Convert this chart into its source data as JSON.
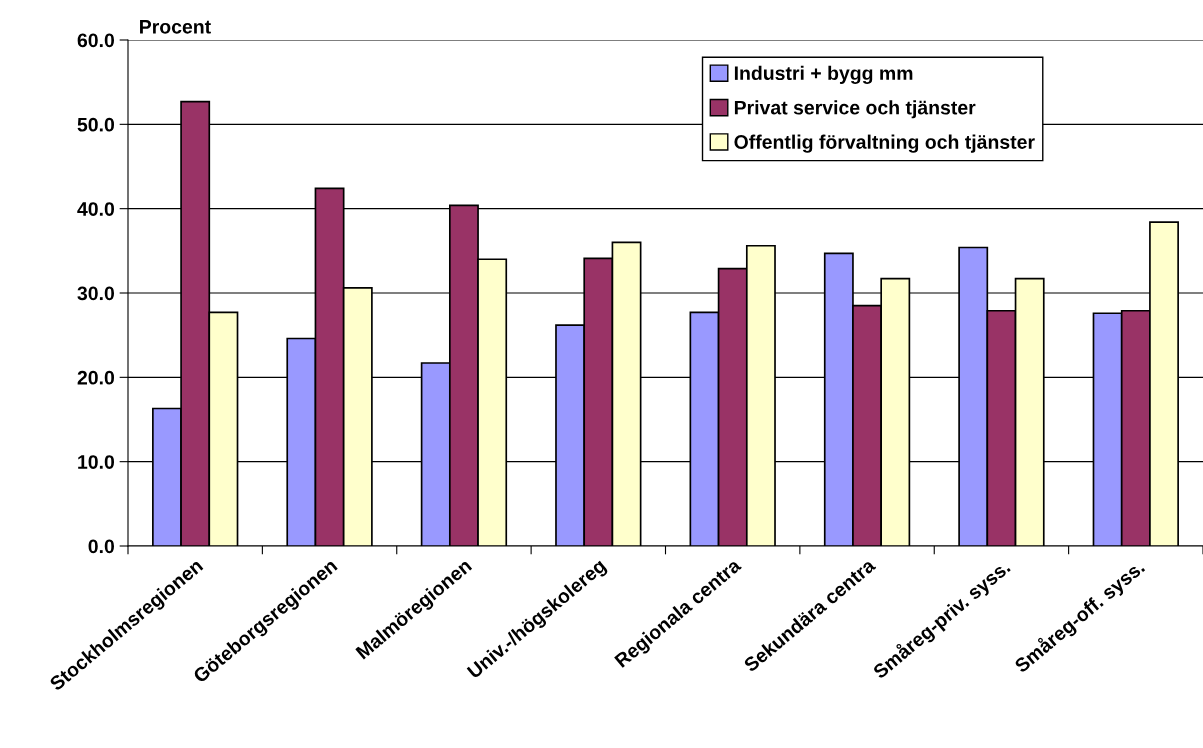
{
  "chart_data": {
    "type": "bar",
    "ylabel": "Procent",
    "categories": [
      "Stockholmsregionen",
      "Göteborgsregionen",
      "Malmöregionen",
      "Univ.-/högskolereg",
      "Regionala centra",
      "Sekundära centra",
      "Småreg-priv. syss.",
      "Småreg-off. syss."
    ],
    "series": [
      {
        "name": "Industri + bygg mm",
        "color": "#9999ff",
        "values": [
          16.3,
          24.6,
          21.7,
          26.2,
          27.7,
          34.7,
          35.4,
          27.6
        ]
      },
      {
        "name": "Privat service och tjänster",
        "color": "#993366",
        "values": [
          52.7,
          42.4,
          40.4,
          34.1,
          32.9,
          28.5,
          27.9,
          27.9
        ]
      },
      {
        "name": "Offentlig förvaltning och tjänster",
        "color": "#ffffcc",
        "values": [
          27.7,
          30.6,
          34.0,
          36.0,
          35.6,
          31.7,
          31.7,
          38.4
        ]
      }
    ],
    "ylim": [
      0,
      60
    ],
    "yticks": [
      {
        "value": 0,
        "label": "0.0"
      },
      {
        "value": 10,
        "label": "10.0"
      },
      {
        "value": 20,
        "label": "20.0"
      },
      {
        "value": 30,
        "label": "30.0"
      },
      {
        "value": 40,
        "label": "40.0"
      },
      {
        "value": 50,
        "label": "50.0"
      },
      {
        "value": 60,
        "label": "60.0"
      }
    ],
    "grid": "y",
    "legend": "top right"
  }
}
